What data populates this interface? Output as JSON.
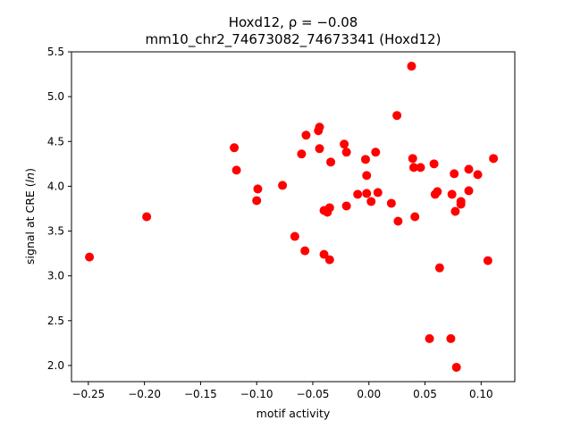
{
  "chart_data": {
    "type": "scatter",
    "title_line1": "Hoxd12, ρ = −0.08",
    "title_line2": "mm10_chr2_74673082_74673341 (Hoxd12)",
    "xlabel": "motif activity",
    "ylabel": "signal at CRE (ln)",
    "xlim": [
      -0.265,
      0.13
    ],
    "ylim": [
      1.82,
      5.5
    ],
    "xticks": [
      -0.25,
      -0.2,
      -0.15,
      -0.1,
      -0.05,
      0.0,
      0.05,
      0.1
    ],
    "xtick_labels": [
      "−0.25",
      "−0.20",
      "−0.15",
      "−0.10",
      "−0.05",
      "0.00",
      "0.05",
      "0.10"
    ],
    "yticks": [
      2.0,
      2.5,
      3.0,
      3.5,
      4.0,
      4.5,
      5.0,
      5.5
    ],
    "ytick_labels": [
      "2.0",
      "2.5",
      "3.0",
      "3.5",
      "4.0",
      "4.5",
      "5.0",
      "5.5"
    ],
    "marker_color": "#ff0000",
    "grid": false,
    "points": [
      {
        "x": -0.249,
        "y": 3.21
      },
      {
        "x": -0.198,
        "y": 3.66
      },
      {
        "x": -0.12,
        "y": 4.43
      },
      {
        "x": -0.118,
        "y": 4.18
      },
      {
        "x": -0.099,
        "y": 3.97
      },
      {
        "x": -0.1,
        "y": 3.84
      },
      {
        "x": -0.077,
        "y": 4.01
      },
      {
        "x": -0.066,
        "y": 3.44
      },
      {
        "x": -0.06,
        "y": 4.36
      },
      {
        "x": -0.056,
        "y": 4.57
      },
      {
        "x": -0.057,
        "y": 3.28
      },
      {
        "x": -0.045,
        "y": 4.62
      },
      {
        "x": -0.044,
        "y": 4.66
      },
      {
        "x": -0.044,
        "y": 4.42
      },
      {
        "x": -0.04,
        "y": 3.24
      },
      {
        "x": -0.04,
        "y": 3.73
      },
      {
        "x": -0.037,
        "y": 3.71
      },
      {
        "x": -0.035,
        "y": 3.76
      },
      {
        "x": -0.035,
        "y": 3.18
      },
      {
        "x": -0.034,
        "y": 4.27
      },
      {
        "x": -0.022,
        "y": 4.47
      },
      {
        "x": -0.02,
        "y": 4.38
      },
      {
        "x": -0.02,
        "y": 3.78
      },
      {
        "x": -0.01,
        "y": 3.91
      },
      {
        "x": -0.003,
        "y": 4.3
      },
      {
        "x": -0.002,
        "y": 4.12
      },
      {
        "x": -0.002,
        "y": 3.92
      },
      {
        "x": 0.002,
        "y": 3.83
      },
      {
        "x": 0.006,
        "y": 4.38
      },
      {
        "x": 0.008,
        "y": 3.93
      },
      {
        "x": 0.02,
        "y": 3.81
      },
      {
        "x": 0.025,
        "y": 4.79
      },
      {
        "x": 0.026,
        "y": 3.61
      },
      {
        "x": 0.038,
        "y": 5.34
      },
      {
        "x": 0.039,
        "y": 4.31
      },
      {
        "x": 0.04,
        "y": 4.21
      },
      {
        "x": 0.041,
        "y": 3.66
      },
      {
        "x": 0.046,
        "y": 4.21
      },
      {
        "x": 0.054,
        "y": 2.3
      },
      {
        "x": 0.058,
        "y": 4.25
      },
      {
        "x": 0.059,
        "y": 3.91
      },
      {
        "x": 0.061,
        "y": 3.94
      },
      {
        "x": 0.063,
        "y": 3.09
      },
      {
        "x": 0.073,
        "y": 2.3
      },
      {
        "x": 0.074,
        "y": 3.91
      },
      {
        "x": 0.076,
        "y": 4.14
      },
      {
        "x": 0.077,
        "y": 3.72
      },
      {
        "x": 0.078,
        "y": 1.98
      },
      {
        "x": 0.082,
        "y": 3.83
      },
      {
        "x": 0.082,
        "y": 3.8
      },
      {
        "x": 0.089,
        "y": 4.19
      },
      {
        "x": 0.089,
        "y": 3.95
      },
      {
        "x": 0.097,
        "y": 4.13
      },
      {
        "x": 0.106,
        "y": 3.17
      },
      {
        "x": 0.111,
        "y": 4.31
      }
    ]
  }
}
